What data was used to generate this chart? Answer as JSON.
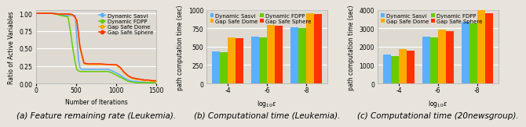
{
  "line_plot": {
    "caption": "(a) Feature remaining rate (Leukemia).",
    "xlabel": "Number of Iterations",
    "ylabel": "Ratio of Active Variables",
    "xlim": [
      0,
      1500
    ],
    "ylim": [
      0,
      1.05
    ],
    "xticks": [
      0,
      500,
      1000,
      1500
    ],
    "yticks": [
      0,
      0.25,
      0.5,
      0.75,
      1
    ],
    "series": {
      "Dynamic Sasvi": {
        "color": "#5aafff",
        "x": [
          0,
          10,
          50,
          100,
          150,
          200,
          250,
          300,
          350,
          400,
          430,
          460,
          490,
          510,
          530,
          550,
          570,
          600,
          630,
          660,
          690,
          720,
          750,
          800,
          850,
          900,
          950,
          1000,
          1050,
          1100,
          1150,
          1200,
          1250,
          1300,
          1350,
          1400,
          1450,
          1500
        ],
        "y": [
          1.0,
          1.0,
          1.0,
          1.0,
          1.0,
          1.0,
          1.0,
          0.98,
          0.97,
          0.97,
          0.97,
          0.97,
          0.97,
          0.65,
          0.35,
          0.22,
          0.2,
          0.2,
          0.2,
          0.2,
          0.2,
          0.2,
          0.2,
          0.2,
          0.2,
          0.2,
          0.18,
          0.15,
          0.12,
          0.08,
          0.05,
          0.03,
          0.03,
          0.02,
          0.02,
          0.01,
          0.01,
          0.01
        ]
      },
      "Dynamic FDPP": {
        "color": "#66cc00",
        "x": [
          0,
          10,
          50,
          100,
          150,
          200,
          250,
          300,
          350,
          400,
          430,
          460,
          490,
          510,
          530,
          550,
          570,
          600,
          630,
          660,
          690,
          720,
          750,
          800,
          850,
          900,
          950,
          1000,
          1050,
          1100,
          1150,
          1200,
          1250,
          1300,
          1350,
          1400,
          1450,
          1500
        ],
        "y": [
          1.0,
          1.0,
          1.0,
          1.0,
          1.0,
          1.0,
          0.99,
          0.97,
          0.96,
          0.95,
          0.75,
          0.5,
          0.3,
          0.2,
          0.18,
          0.17,
          0.17,
          0.17,
          0.17,
          0.17,
          0.17,
          0.17,
          0.17,
          0.17,
          0.17,
          0.17,
          0.15,
          0.12,
          0.09,
          0.06,
          0.03,
          0.02,
          0.01,
          0.01,
          0.01,
          0.01,
          0.01,
          0.01
        ]
      },
      "Gap Safe Dome": {
        "color": "#ffaa00",
        "x": [
          0,
          10,
          50,
          100,
          150,
          200,
          250,
          300,
          350,
          400,
          430,
          460,
          490,
          510,
          530,
          550,
          600,
          650,
          700,
          750,
          800,
          900,
          1000,
          1050,
          1100,
          1150,
          1200,
          1250,
          1300,
          1350,
          1400,
          1450,
          1500
        ],
        "y": [
          1.0,
          1.0,
          1.0,
          1.0,
          1.0,
          1.0,
          0.99,
          0.99,
          0.99,
          0.99,
          0.98,
          0.97,
          0.93,
          0.88,
          0.7,
          0.5,
          0.28,
          0.27,
          0.27,
          0.27,
          0.27,
          0.27,
          0.26,
          0.22,
          0.15,
          0.1,
          0.07,
          0.06,
          0.05,
          0.04,
          0.04,
          0.03,
          0.03
        ]
      },
      "Gap Safe Sphere": {
        "color": "#ff3300",
        "x": [
          0,
          10,
          50,
          100,
          150,
          200,
          250,
          300,
          350,
          400,
          430,
          460,
          490,
          510,
          530,
          550,
          600,
          650,
          700,
          750,
          800,
          900,
          1000,
          1050,
          1100,
          1150,
          1200,
          1250,
          1300,
          1350,
          1400,
          1450,
          1500
        ],
        "y": [
          1.0,
          1.0,
          1.0,
          1.0,
          1.0,
          1.0,
          0.99,
          0.99,
          0.99,
          0.99,
          0.99,
          0.98,
          0.94,
          0.9,
          0.72,
          0.52,
          0.29,
          0.28,
          0.28,
          0.28,
          0.28,
          0.27,
          0.27,
          0.23,
          0.16,
          0.11,
          0.08,
          0.07,
          0.06,
          0.05,
          0.05,
          0.04,
          0.04
        ]
      }
    }
  },
  "bar_leukemia": {
    "caption": "(b) Computational time (Leukemia).",
    "xlabel": "$\\mathrm{log}_{10}\\,\\epsilon$",
    "ylabel": "path computation time (sec)",
    "ylim": [
      0,
      1000
    ],
    "yticks": [
      0,
      250,
      500,
      750,
      1000
    ],
    "groups": [
      "-4",
      "-6",
      "-8"
    ],
    "series_order": [
      "Dynamic Sasvi",
      "Dynamic FDPP",
      "Gap Safe Dome",
      "Gap Safe Sphere"
    ],
    "series": {
      "Dynamic Sasvi": {
        "color": "#5aafff",
        "values": [
          430,
          640,
          760
        ]
      },
      "Dynamic FDPP": {
        "color": "#66cc00",
        "values": [
          420,
          630,
          755
        ]
      },
      "Gap Safe Dome": {
        "color": "#ffaa00",
        "values": [
          620,
          790,
          950
        ]
      },
      "Gap Safe Sphere": {
        "color": "#ff3300",
        "values": [
          610,
          780,
          940
        ]
      }
    }
  },
  "bar_newsgroup": {
    "caption": "(c) Computational time (20newsgroup).",
    "xlabel": "$\\mathrm{log}_{10}\\,\\epsilon$",
    "ylabel": "path computation time (sec)",
    "ylim": [
      0,
      4000
    ],
    "yticks": [
      0,
      1000,
      2000,
      3000,
      4000
    ],
    "groups": [
      "-4",
      "-6",
      "-8"
    ],
    "series_order": [
      "Dynamic Sasvi",
      "Dynamic FDPP",
      "Gap Safe Dome",
      "Gap Safe Sphere"
    ],
    "series": {
      "Dynamic Sasvi": {
        "color": "#5aafff",
        "values": [
          1570,
          2560,
          3350
        ]
      },
      "Dynamic FDPP": {
        "color": "#66cc00",
        "values": [
          1490,
          2480,
          3280
        ]
      },
      "Gap Safe Dome": {
        "color": "#ffaa00",
        "values": [
          1860,
          2920,
          3980
        ]
      },
      "Gap Safe Sphere": {
        "color": "#ff3300",
        "values": [
          1780,
          2820,
          3820
        ]
      }
    }
  },
  "legend_line_order": [
    "Dynamic Sasvi",
    "Dynamic FDPP",
    "Gap Safe Dome",
    "Gap Safe Sphere"
  ],
  "legend_bar_order": [
    "Dynamic Sasvi",
    "Gap Safe Dome",
    "Dynamic FDPP",
    "Gap Safe Sphere"
  ],
  "bg_color": "#e8e4dc",
  "plot_bg_color": "#dedad2",
  "caption_fontsize": 7.5,
  "label_fontsize": 5.5,
  "tick_fontsize": 5.5,
  "legend_fontsize": 5.0
}
